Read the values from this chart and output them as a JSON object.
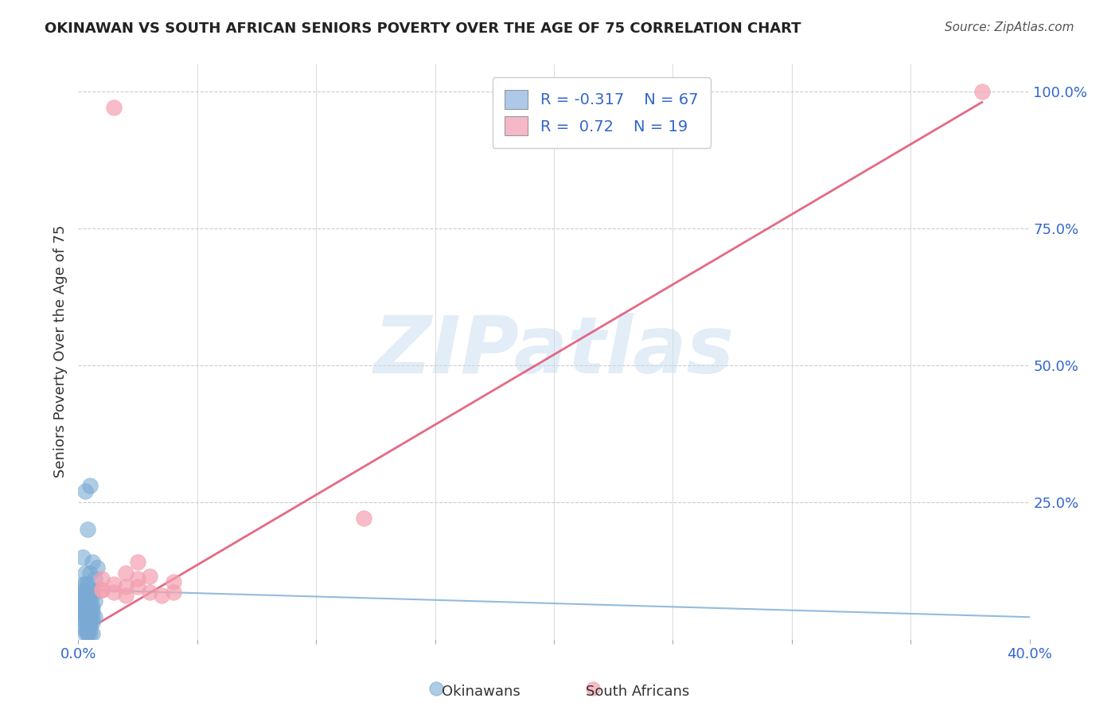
{
  "title": "OKINAWAN VS SOUTH AFRICAN SENIORS POVERTY OVER THE AGE OF 75 CORRELATION CHART",
  "source": "Source: ZipAtlas.com",
  "ylabel": "Seniors Poverty Over the Age of 75",
  "xlabel": "",
  "xlim": [
    0,
    0.4
  ],
  "ylim": [
    0,
    1.05
  ],
  "xticks": [
    0.0,
    0.05,
    0.1,
    0.15,
    0.2,
    0.25,
    0.3,
    0.35,
    0.4
  ],
  "xticklabels": [
    "0.0%",
    "",
    "",
    "",
    "",
    "",
    "",
    "",
    "40.0%"
  ],
  "ytick_positions": [
    0.25,
    0.5,
    0.75,
    1.0
  ],
  "ytick_labels": [
    "25.0%",
    "50.0%",
    "75.0%",
    "100.0%"
  ],
  "grid_color": "#cccccc",
  "bg_color": "#ffffff",
  "okinawan_color": "#7aaad4",
  "south_african_color": "#f4a0b0",
  "okinawan_R": -0.317,
  "okinawan_N": 67,
  "south_african_R": 0.72,
  "south_african_N": 19,
  "watermark": "ZIPatlas",
  "legend_box_color_okinawan": "#adc8e8",
  "legend_box_color_sa": "#f4b8c8",
  "okinawan_scatter_x": [
    0.005,
    0.003,
    0.004,
    0.002,
    0.006,
    0.008,
    0.003,
    0.005,
    0.007,
    0.004,
    0.002,
    0.003,
    0.004,
    0.005,
    0.006,
    0.003,
    0.004,
    0.002,
    0.005,
    0.003,
    0.004,
    0.002,
    0.006,
    0.003,
    0.005,
    0.004,
    0.003,
    0.007,
    0.002,
    0.004,
    0.003,
    0.005,
    0.006,
    0.004,
    0.003,
    0.002,
    0.005,
    0.004,
    0.003,
    0.006,
    0.004,
    0.003,
    0.005,
    0.002,
    0.004,
    0.003,
    0.006,
    0.005,
    0.004,
    0.003,
    0.007,
    0.004,
    0.003,
    0.005,
    0.006,
    0.004,
    0.003,
    0.005,
    0.004,
    0.003,
    0.002,
    0.005,
    0.004,
    0.003,
    0.006,
    0.005,
    0.004
  ],
  "okinawan_scatter_y": [
    0.28,
    0.27,
    0.2,
    0.15,
    0.14,
    0.13,
    0.12,
    0.12,
    0.11,
    0.1,
    0.1,
    0.1,
    0.09,
    0.09,
    0.09,
    0.09,
    0.09,
    0.08,
    0.08,
    0.08,
    0.08,
    0.08,
    0.08,
    0.07,
    0.07,
    0.07,
    0.07,
    0.07,
    0.07,
    0.07,
    0.06,
    0.06,
    0.06,
    0.06,
    0.06,
    0.06,
    0.06,
    0.05,
    0.05,
    0.05,
    0.05,
    0.05,
    0.05,
    0.05,
    0.05,
    0.04,
    0.04,
    0.04,
    0.04,
    0.04,
    0.04,
    0.04,
    0.04,
    0.03,
    0.03,
    0.03,
    0.03,
    0.03,
    0.02,
    0.02,
    0.02,
    0.02,
    0.01,
    0.01,
    0.01,
    0.01,
    0.01
  ],
  "sa_scatter_x": [
    0.015,
    0.025,
    0.02,
    0.01,
    0.03,
    0.04,
    0.025,
    0.015,
    0.02,
    0.01,
    0.03,
    0.035,
    0.04,
    0.025,
    0.02,
    0.015,
    0.38,
    0.01,
    0.12
  ],
  "sa_scatter_y": [
    0.97,
    0.14,
    0.12,
    0.11,
    0.115,
    0.105,
    0.11,
    0.1,
    0.095,
    0.09,
    0.085,
    0.08,
    0.085,
    0.095,
    0.08,
    0.085,
    1.0,
    0.09,
    0.22
  ],
  "blue_line_x": [
    0.0,
    0.4
  ],
  "blue_line_y": [
    0.09,
    0.04
  ],
  "pink_line_x": [
    0.005,
    0.38
  ],
  "pink_line_y": [
    0.02,
    0.98
  ]
}
